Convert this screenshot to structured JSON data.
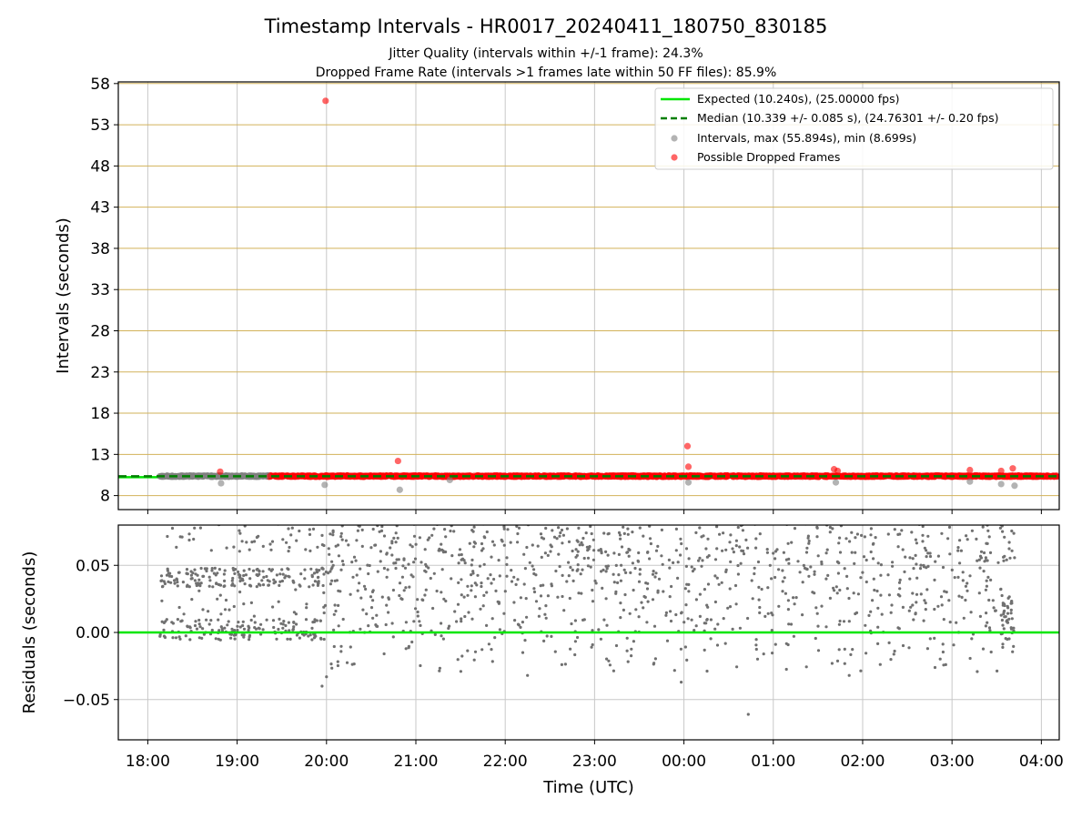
{
  "chart_data": [
    {
      "type": "scatter",
      "title": "Timestamp Intervals - HR0017_20240411_180750_830185",
      "subtitle_lines": [
        "Jitter Quality (intervals within +/-1 frame): 24.3%",
        "Dropped Frame Rate (intervals >1 frames late within 50 FF files): 85.9%"
      ],
      "ylabel": "Intervals (seconds)",
      "xlabel": "",
      "xlim_hours": [
        17.67,
        28.2
      ],
      "ylim": [
        6.3,
        58.2
      ],
      "y_ticks": [
        8,
        13,
        18,
        23,
        28,
        33,
        38,
        43,
        48,
        53,
        58
      ],
      "grid": true,
      "legend_position": "top-right",
      "legend": [
        "Expected (10.240s), (25.00000 fps)",
        "Median (10.339 +/- 0.085 s), (24.76301 +/- 0.20 fps)",
        "Intervals, max (55.894s), min (8.699s)",
        "Possible Dropped Frames"
      ],
      "expected_interval": 10.24,
      "median_interval": 10.339,
      "intervals_max": 55.894,
      "intervals_min": 8.699,
      "colors": {
        "expected": "#00e600",
        "median": "#007f00",
        "intervals": "#808080",
        "dropped": "#ff0000",
        "hgrid": "#d2b25a",
        "vgrid": "#c8c8c8"
      },
      "band_time_range": [
        18.13,
        28.18
      ],
      "gray_band_time_range": [
        18.13,
        19.35
      ],
      "gray_outliers": [
        {
          "t": 18.82,
          "y": 9.5
        },
        {
          "t": 19.98,
          "y": 9.3
        },
        {
          "t": 20.82,
          "y": 8.7
        },
        {
          "t": 21.38,
          "y": 9.9
        },
        {
          "t": 24.05,
          "y": 9.6
        },
        {
          "t": 25.7,
          "y": 9.6
        },
        {
          "t": 27.2,
          "y": 9.7
        },
        {
          "t": 27.55,
          "y": 9.4
        },
        {
          "t": 27.7,
          "y": 9.2
        }
      ],
      "dropped_outliers": [
        {
          "t": 18.81,
          "y": 10.9
        },
        {
          "t": 19.99,
          "y": 55.9
        },
        {
          "t": 20.8,
          "y": 12.2
        },
        {
          "t": 24.04,
          "y": 14.0
        },
        {
          "t": 24.05,
          "y": 11.5
        },
        {
          "t": 25.68,
          "y": 11.2
        },
        {
          "t": 25.72,
          "y": 11.0
        },
        {
          "t": 27.2,
          "y": 11.1
        },
        {
          "t": 27.55,
          "y": 11.0
        },
        {
          "t": 27.68,
          "y": 11.3
        }
      ]
    },
    {
      "type": "scatter",
      "ylabel": "Residuals (seconds)",
      "xlabel": "Time (UTC)",
      "xlim_hours": [
        17.67,
        28.2
      ],
      "ylim": [
        -0.08,
        0.08
      ],
      "y_ticks": [
        0.05,
        0.0,
        -0.05
      ],
      "y_tick_labels": [
        "0.05",
        "0.00",
        "−0.05"
      ],
      "x_ticks_hours": [
        18,
        19,
        20,
        21,
        22,
        23,
        24,
        25,
        26,
        27,
        28
      ],
      "x_tick_labels": [
        "18:00",
        "19:00",
        "20:00",
        "21:00",
        "22:00",
        "23:00",
        "00:00",
        "01:00",
        "02:00",
        "03:00",
        "04:00"
      ],
      "zero_line_color": "#00e600",
      "point_color": "#707070",
      "grid": true
    }
  ]
}
